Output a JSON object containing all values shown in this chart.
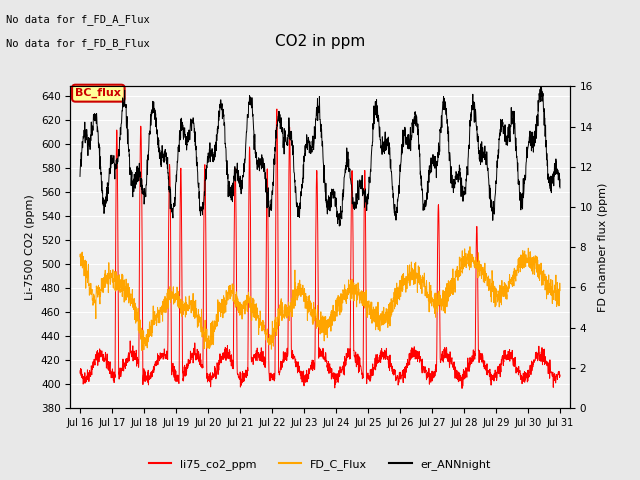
{
  "title": "CO2 in ppm",
  "ylabel_left": "Li-7500 CO2 (ppm)",
  "ylabel_right": "FD chamber flux (ppm)",
  "xlim_days": [
    15.7,
    31.3
  ],
  "ylim_left": [
    380,
    648
  ],
  "ylim_right": [
    0,
    16
  ],
  "yticks_left": [
    380,
    400,
    420,
    440,
    460,
    480,
    500,
    520,
    540,
    560,
    580,
    600,
    620,
    640
  ],
  "yticks_right": [
    0,
    2,
    4,
    6,
    8,
    10,
    12,
    14,
    16
  ],
  "xtick_labels": [
    "Jul 16",
    "Jul 17",
    "Jul 18",
    "Jul 19",
    "Jul 20",
    "Jul 21",
    "Jul 22",
    "Jul 23",
    "Jul 24",
    "Jul 25",
    "Jul 26",
    "Jul 27",
    "Jul 28",
    "Jul 29",
    "Jul 30",
    "Jul 31"
  ],
  "xtick_positions": [
    16,
    17,
    18,
    19,
    20,
    21,
    22,
    23,
    24,
    25,
    26,
    27,
    28,
    29,
    30,
    31
  ],
  "text_no_data_1": "No data for f_FD_A_Flux",
  "text_no_data_2": "No data for f_FD_B_Flux",
  "bc_flux_label": "BC_flux",
  "legend_labels": [
    "li75_co2_ppm",
    "FD_C_Flux",
    "er_ANNnight"
  ],
  "legend_colors": [
    "#ff0000",
    "#ffa500",
    "#000000"
  ],
  "line_red_color": "#ff0000",
  "line_orange_color": "#ffa500",
  "line_black_color": "#000000",
  "bg_color": "#e8e8e8",
  "plot_bg_color": "#f0f0f0",
  "bc_flux_bg": "#ffff99",
  "bc_flux_border": "#cc0000",
  "figsize": [
    6.4,
    4.8
  ],
  "dpi": 100
}
